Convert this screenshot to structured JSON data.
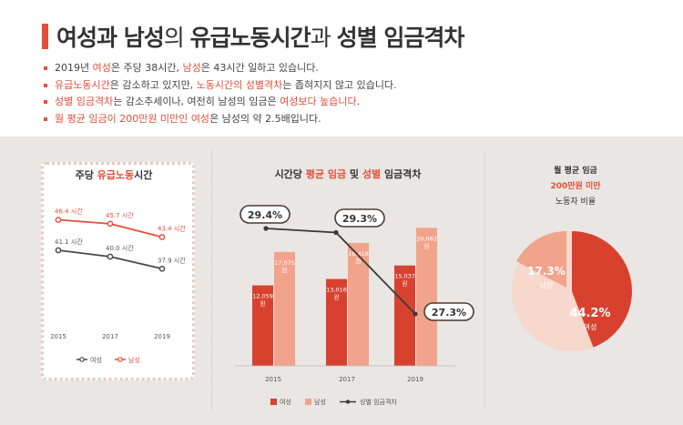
{
  "header": {
    "title_parts": [
      "여성과 남성",
      "의 ",
      "유급노동시간",
      "과 ",
      "성별 임금격차"
    ],
    "bullets": [
      [
        "2019년 ",
        "여성",
        "은 주당 38시간, ",
        "남성",
        "은 43시간 일하고 있습니다."
      ],
      [
        "유급노동시간",
        "은 감소하고 있지만, ",
        "노동시간의 ",
        "성별격차",
        "는 좁혀지지 않고 있습니다."
      ],
      [
        "성별 임금격차",
        "는 감소추세이나, 여전히 남성의 임금은 ",
        "여성보다 높습니다",
        "."
      ],
      [
        "월 평균 임금이 200만원 미만인 ",
        "여성",
        "은 남성의 약 2.5배입니다."
      ]
    ]
  },
  "colors": {
    "accent": "#e0503a",
    "male": "#f2a38b",
    "female": "#d9412f",
    "gap_line": "#3a3a3a"
  },
  "chart_data": [
    {
      "type": "line",
      "title_parts": [
        "주당 ",
        "유급노동",
        "시간"
      ],
      "x": [
        "2015",
        "2017",
        "2019"
      ],
      "series": [
        {
          "name": "남성",
          "values": [
            46.4,
            45.7,
            43.4
          ],
          "labels": [
            "46.4 시간",
            "45.7 시간",
            "43.4 시간"
          ]
        },
        {
          "name": "여성",
          "values": [
            41.1,
            40.0,
            37.9
          ],
          "labels": [
            "41.1 시간",
            "40.0 시간",
            "37.9 시간"
          ]
        }
      ],
      "legend": [
        "여성",
        "남성"
      ],
      "ylim": [
        34,
        49
      ]
    },
    {
      "type": "bar",
      "title_parts": [
        "시간당 ",
        "평균 임금",
        " 및 ",
        "성별",
        " 임금격차"
      ],
      "categories": [
        "2015",
        "2017",
        "2019"
      ],
      "series": [
        {
          "name": "여성",
          "values": [
            12059,
            13016,
            15037
          ],
          "labels": [
            "12,059 원",
            "13,016 원",
            "15,037 원"
          ]
        },
        {
          "name": "남성",
          "values": [
            17075,
            18418,
            20682
          ],
          "labels": [
            "17,075 원",
            "18,418 원",
            "20,682 원"
          ]
        }
      ],
      "gap_series": {
        "name": "성별 임금격차",
        "values": [
          29.4,
          29.3,
          27.3
        ],
        "labels": [
          "29.4%",
          "29.3%",
          "27.3%"
        ]
      },
      "legend": [
        "여성",
        "남성",
        "성별 임금격차"
      ],
      "ylim": [
        0,
        24000
      ]
    },
    {
      "type": "pie",
      "title_lines": [
        "월 평균 임금",
        "200만원 미만",
        "노동자 비율"
      ],
      "slices": [
        {
          "name": "여성",
          "value": 44.2,
          "label": "44.2%"
        },
        {
          "name": "남성",
          "value": 17.3,
          "label": "17.3%"
        }
      ]
    }
  ]
}
